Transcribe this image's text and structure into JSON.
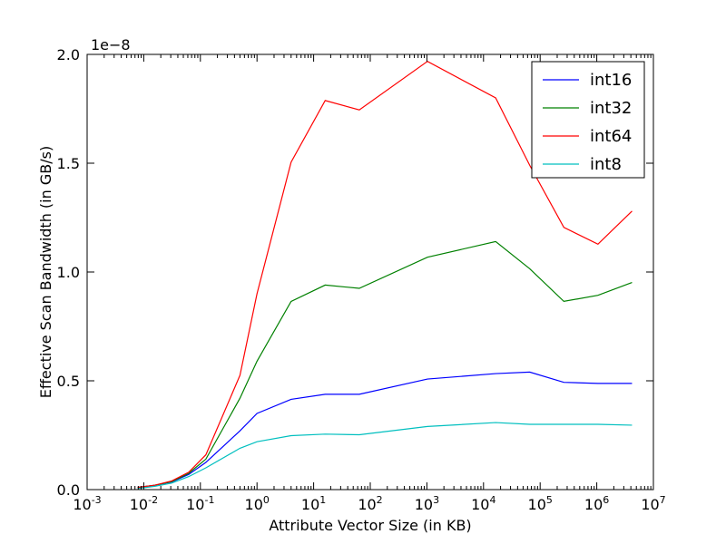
{
  "chart_data": {
    "type": "line",
    "title": "",
    "xlabel": "Attribute Vector Size (in KB)",
    "ylabel": "Effective Scan Bandwidth (in GB/s)",
    "y_offset_label": "1e−8",
    "x_scale": "log",
    "xlim": [
      0.001,
      10000000
    ],
    "ylim": [
      0.0,
      2.0
    ],
    "x_ticks": [
      {
        "base": "10",
        "exp": "-3"
      },
      {
        "base": "10",
        "exp": "-2"
      },
      {
        "base": "10",
        "exp": "-1"
      },
      {
        "base": "10",
        "exp": "0"
      },
      {
        "base": "10",
        "exp": "1"
      },
      {
        "base": "10",
        "exp": "2"
      },
      {
        "base": "10",
        "exp": "3"
      },
      {
        "base": "10",
        "exp": "4"
      },
      {
        "base": "10",
        "exp": "5"
      },
      {
        "base": "10",
        "exp": "6"
      },
      {
        "base": "10",
        "exp": "7"
      }
    ],
    "y_ticks": [
      "0.0",
      "0.5",
      "1.0",
      "1.5",
      "2.0"
    ],
    "grid": false,
    "legend_position": "top-right",
    "x": [
      0.0078,
      0.0156,
      0.03125,
      0.0625,
      0.125,
      0.5,
      1,
      4,
      16,
      64,
      1024,
      16384,
      65536,
      262144,
      1048576,
      4194304
    ],
    "series": [
      {
        "name": "int16",
        "color": "#0000ff",
        "values": [
          0.01,
          0.02,
          0.035,
          0.07,
          0.125,
          0.27,
          0.35,
          0.415,
          0.438,
          0.438,
          0.508,
          0.533,
          0.54,
          0.493,
          0.488,
          0.488
        ]
      },
      {
        "name": "int32",
        "color": "#008000",
        "values": [
          0.01,
          0.02,
          0.037,
          0.075,
          0.14,
          0.42,
          0.59,
          0.865,
          0.94,
          0.925,
          1.068,
          1.14,
          1.015,
          0.865,
          0.893,
          0.952
        ]
      },
      {
        "name": "int64",
        "color": "#ff0000",
        "values": [
          0.01,
          0.02,
          0.04,
          0.08,
          0.16,
          0.525,
          0.9,
          1.505,
          1.788,
          1.745,
          1.968,
          1.8,
          1.49,
          1.205,
          1.128,
          1.28
        ]
      },
      {
        "name": "int8",
        "color": "#00bfbf",
        "values": [
          0.005,
          0.015,
          0.03,
          0.06,
          0.1,
          0.19,
          0.22,
          0.248,
          0.255,
          0.252,
          0.29,
          0.308,
          0.3,
          0.3,
          0.3,
          0.296
        ]
      }
    ]
  }
}
